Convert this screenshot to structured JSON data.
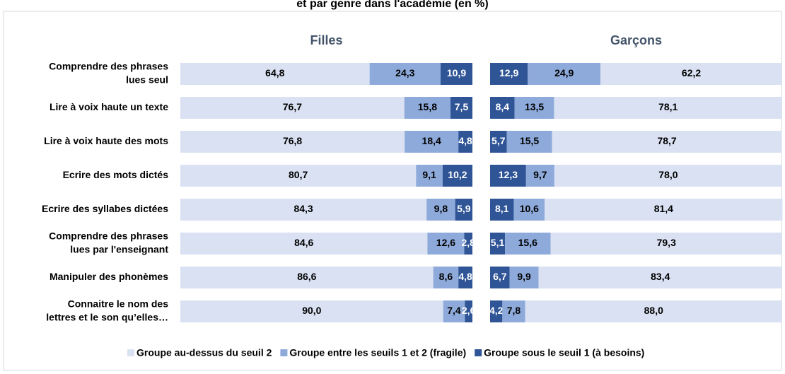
{
  "chart_data": {
    "type": "bar",
    "title": "et par genre dans l'académie (en %)",
    "categories": [
      [
        "Comprendre des phrases",
        "lues seul"
      ],
      [
        "Lire à voix haute un texte"
      ],
      [
        "Lire à voix haute des mots"
      ],
      [
        "Ecrire des mots dictés"
      ],
      [
        "Ecrire des syllabes dictées"
      ],
      [
        "Comprendre des phrases",
        "lues par l'enseignant"
      ],
      [
        "Manipuler des phonèmes"
      ],
      [
        "Connaitre le nom des",
        "lettres et le son qu’elles…"
      ]
    ],
    "panels": [
      {
        "title": "Filles",
        "series": [
          {
            "name": "Groupe au-dessus du seuil 2",
            "color": "#d9e1f2",
            "values": [
              64.8,
              76.7,
              76.8,
              80.7,
              84.3,
              84.6,
              86.6,
              90.0
            ],
            "value_labels": [
              "64,8",
              "76,7",
              "76,8",
              "80,7",
              "84,3",
              "84,6",
              "86,6",
              "90,0"
            ]
          },
          {
            "name": "Groupe entre les seuils 1 et 2 (fragile)",
            "color": "#8eaadb",
            "values": [
              24.3,
              15.8,
              18.4,
              9.1,
              9.8,
              12.6,
              8.6,
              7.4
            ],
            "value_labels": [
              "24,3",
              "15,8",
              "18,4",
              "9,1",
              "9,8",
              "12,6",
              "8,6",
              "7,4"
            ]
          },
          {
            "name": "Groupe sous le seuil 1 (à besoins)",
            "color": "#2f5597",
            "values": [
              10.9,
              7.5,
              4.8,
              10.2,
              5.9,
              2.8,
              4.8,
              2.6
            ],
            "value_labels": [
              "10,9",
              "7,5",
              "4,8",
              "10,2",
              "5,9",
              "2,8",
              "4,8",
              "2,6"
            ]
          }
        ]
      },
      {
        "title": "Garçons",
        "series": [
          {
            "name": "Groupe au-dessus du seuil 2",
            "color": "#d9e1f2",
            "values": [
              62.2,
              78.1,
              78.7,
              78.0,
              81.4,
              79.3,
              83.4,
              88.0
            ],
            "value_labels": [
              "62,2",
              "78,1",
              "78,7",
              "78,0",
              "81,4",
              "79,3",
              "83,4",
              "88,0"
            ]
          },
          {
            "name": "Groupe entre les seuils 1 et 2 (fragile)",
            "color": "#8eaadb",
            "values": [
              24.9,
              13.5,
              15.5,
              9.7,
              10.6,
              15.6,
              9.9,
              7.8
            ],
            "value_labels": [
              "24,9",
              "13,5",
              "15,5",
              "9,7",
              "10,6",
              "15,6",
              "9,9",
              "7,8"
            ]
          },
          {
            "name": "Groupe sous le seuil 1 (à besoins)",
            "color": "#2f5597",
            "values": [
              12.9,
              8.4,
              5.7,
              12.3,
              8.1,
              5.1,
              6.7,
              4.2
            ],
            "value_labels": [
              "12,9",
              "8,4",
              "5,7",
              "12,3",
              "8,1",
              "5,1",
              "6,7",
              "4,2"
            ]
          }
        ]
      }
    ],
    "xlim": [
      0,
      100
    ]
  }
}
